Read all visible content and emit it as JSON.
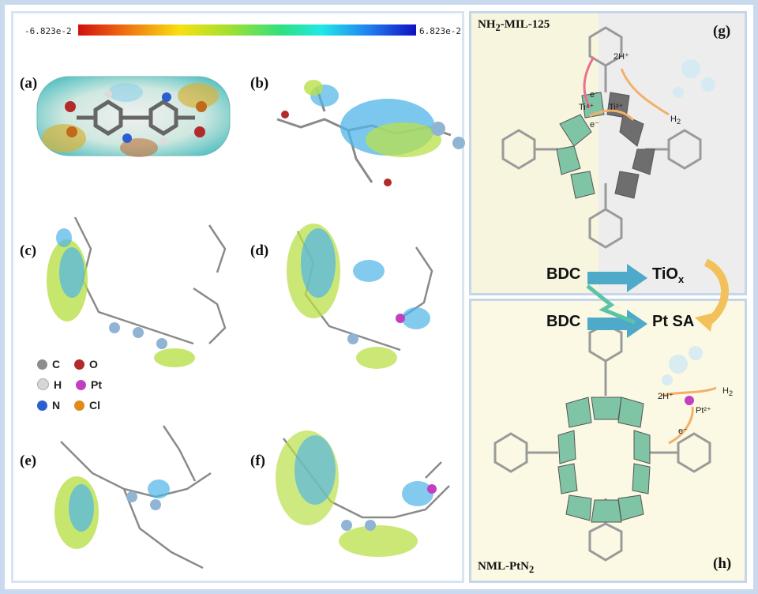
{
  "colorbar": {
    "min_label": "-6.823e-2",
    "max_label": "6.823e-2"
  },
  "panel_labels": {
    "a": "(a)",
    "b": "(b)",
    "c": "(c)",
    "d": "(d)",
    "e": "(e)",
    "f": "(f)",
    "g": "(g)",
    "h": "(h)"
  },
  "legend": [
    {
      "symbol": "C",
      "color": "#8c8c8c"
    },
    {
      "symbol": "O",
      "color": "#b22a2a"
    },
    {
      "symbol": "H",
      "color": "#d6d6d6"
    },
    {
      "symbol": "Pt",
      "color": "#c040c0"
    },
    {
      "symbol": "N",
      "color": "#2a5fd0"
    },
    {
      "symbol": "Cl",
      "color": "#e08a1a"
    }
  ],
  "g_panel": {
    "title_main": "NH",
    "title_sub": "2",
    "title_rest": "-MIL-125",
    "proton_label": "2H⁺",
    "h2_label": "H",
    "h2_sub": "2",
    "e1": "e⁻",
    "e2": "e⁻",
    "ti4": "Ti⁴⁺",
    "ti3": "Ti³⁺"
  },
  "flow": {
    "bdc1": "BDC",
    "bdc2": "BDC",
    "tiox_main": "TiO",
    "tiox_sub": "x",
    "ptsa": "Pt SA"
  },
  "h_panel": {
    "title_main": "NML-PtN",
    "title_sub": "2",
    "proton_label": "2H⁺",
    "h2_label": "H",
    "h2_sub": "2",
    "pt_label": "Pt²⁺",
    "e_label": "e⁻"
  },
  "colors": {
    "teal_arrow": "#4fa9c9",
    "gold_arrow": "#f2c15a",
    "green_poly": "#7fc4a4",
    "gray_poly": "#6e6e6e",
    "orb_blue": "#4fb4e8",
    "orb_green": "#b9e04a"
  }
}
